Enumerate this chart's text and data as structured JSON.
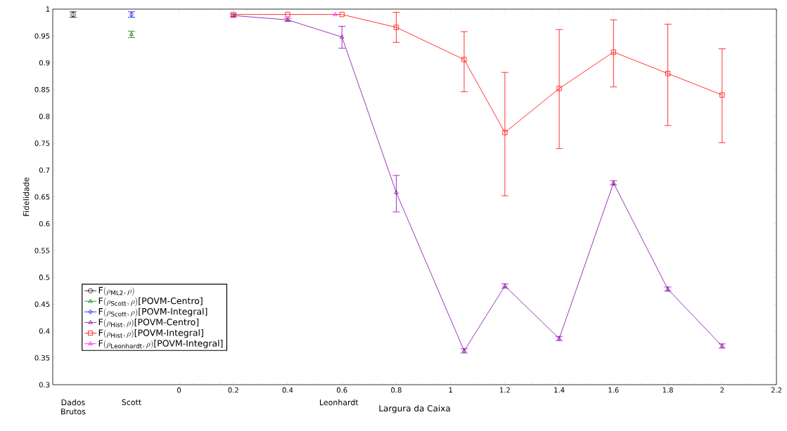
{
  "chart_data": {
    "type": "line",
    "xlabel": "Largura da Caixa",
    "ylabel": "Fidelidade",
    "xlim": [
      -0.465,
      2.2
    ],
    "ylim": [
      0.3,
      1
    ],
    "xticks": [
      0,
      0.2,
      0.4,
      0.6,
      0.8,
      1,
      1.2,
      1.4,
      1.6,
      1.8,
      2,
      2.2
    ],
    "annotations": [
      "Dados Brutos",
      "Scott",
      "Leonhardt"
    ],
    "yticks": [
      0.3,
      0.35,
      0.4,
      0.45,
      0.5,
      0.55,
      0.6,
      0.65,
      0.7,
      0.75,
      0.8,
      0.85,
      0.9,
      0.95,
      1
    ],
    "legend": "bottom left",
    "grid": false,
    "line_style": "solid",
    "series": [
      {
        "name": "\\mathrm{F}(\\rho_{\\mathrm{ML2}},\\rho)",
        "color": "#000000",
        "marker": "circle",
        "x": [
          -0.39
        ],
        "values": [
          0.99
        ],
        "errors": [
          0.005
        ]
      },
      {
        "name": "\\mathrm{F}(\\rho_{\\mathrm{Scott}},\\rho)\\mbox{[POVM-Centro]}",
        "color": "#008000",
        "marker": "triangle",
        "x": [
          -0.175
        ],
        "values": [
          0.953
        ],
        "errors": [
          0.006
        ]
      },
      {
        "name": "\\mathrm{F}(\\rho_{\\mathrm{Scott}},\\rho)\\mbox{[POVM-Integral]}",
        "color": "#0000ff",
        "marker": "diamond",
        "x": [
          -0.175
        ],
        "values": [
          0.99
        ],
        "errors": [
          0.005
        ]
      },
      {
        "name": "\\mathrm{F}(\\rho_{\\mathrm{Hist}},\\rho)\\mbox{[POVM-Centro]}",
        "color": "#8800aa",
        "marker": "triangle",
        "x": [
          0.2,
          0.4,
          0.6,
          0.8,
          1.05,
          1.2,
          1.4,
          1.6,
          1.8,
          2
        ],
        "values": [
          0.988,
          0.98,
          0.948,
          0.658,
          0.363,
          0.484,
          0.386,
          0.676,
          0.478,
          0.372
        ],
        "errors": [
          0.003,
          0.003,
          [
            0.927,
            0.968
          ],
          [
            0.622,
            0.69
          ],
          0.004,
          0.004,
          0.004,
          0.004,
          0.004,
          0.004
        ]
      },
      {
        "name": "\\mathrm{F}(\\rho_{\\mathrm{Hist}},\\rho)\\mbox{[POVM-Integral]}",
        "color": "#ff0000",
        "marker": "square",
        "x": [
          0.2,
          0.4,
          0.6,
          0.8,
          1.05,
          1.2,
          1.4,
          1.6,
          1.8,
          2
        ],
        "values": [
          0.99,
          0.99,
          0.99,
          0.966,
          0.906,
          0.77,
          0.852,
          0.92,
          0.88,
          0.84
        ],
        "errors": [
          null,
          null,
          null,
          [
            0.938,
            0.994
          ],
          [
            0.846,
            0.958
          ],
          [
            0.652,
            0.882
          ],
          [
            0.74,
            0.962
          ],
          [
            0.855,
            0.98
          ],
          [
            0.783,
            0.972
          ],
          [
            0.751,
            0.926
          ]
        ]
      },
      {
        "name": "\\mathrm{F}(\\rho_{\\mathrm{Leonhardt}},\\rho)\\mbox{[POVM-Integral]}",
        "color": "#ff00ff",
        "marker": "triangle",
        "x": [
          0.575
        ],
        "values": [
          0.99
        ]
      }
    ]
  }
}
